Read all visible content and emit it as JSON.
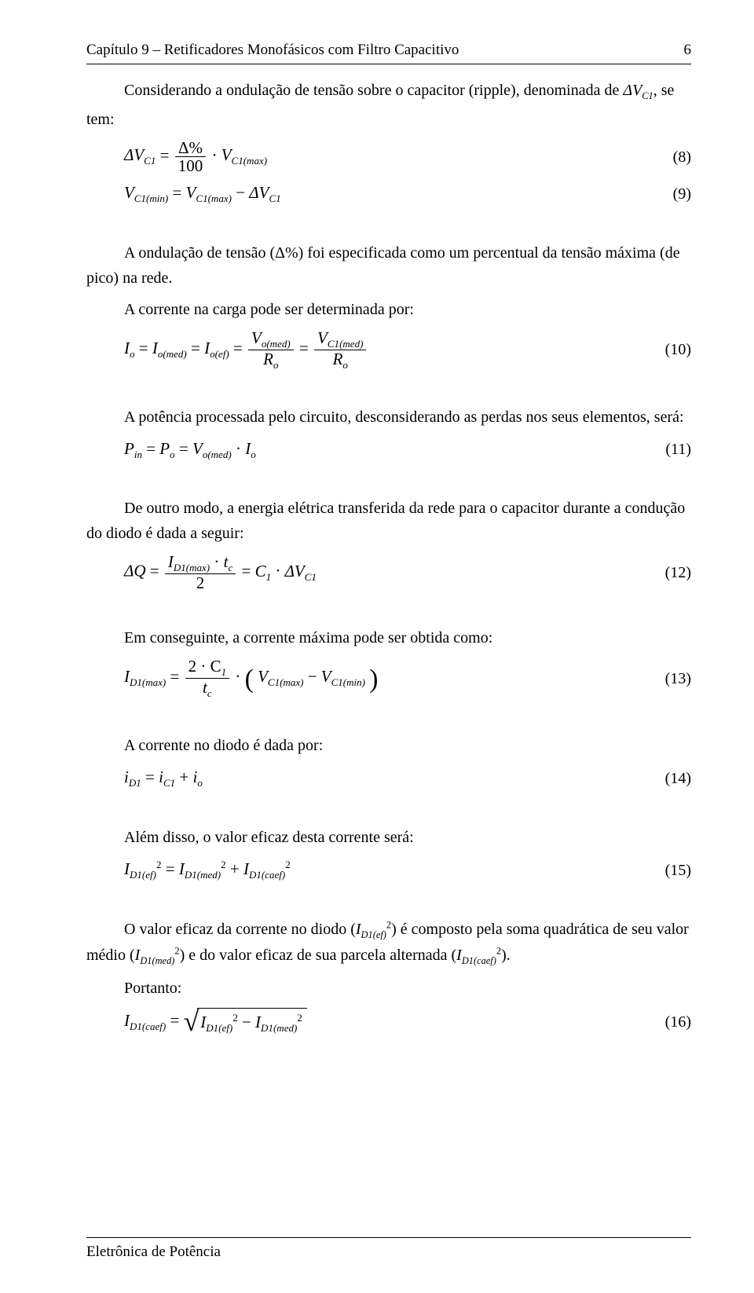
{
  "header": {
    "chapter": "Capítulo 9 – Retificadores Monofásicos com Filtro Capacitivo",
    "page_number": "6"
  },
  "footer": {
    "text": "Eletrônica de Potência"
  },
  "body": {
    "p_intro_left": "tem:",
    "p_intro_right": "Considerando a ondulação de tensão sobre o capacitor (ripple), denominada de ",
    "p_intro_sym": "ΔV",
    "p_intro_sub": "C1",
    "p_intro_tail": ", se",
    "p2a": "A ondulação de tensão (Δ%) foi especificada como um percentual da tensão máxima (de",
    "p2b": "pico) na rede.",
    "p3": "A corrente na carga pode ser determinada por:",
    "p4": "A potência processada pelo circuito, desconsiderando as perdas nos seus elementos, será:",
    "p5a": "De outro modo, a energia elétrica transferida da rede para o capacitor durante a condução",
    "p5b": "do diodo é dada a seguir:",
    "p6": "Em conseguinte, a corrente máxima pode ser obtida como:",
    "p7": "A corrente no diodo é dada por:",
    "p8": "Além disso, o valor eficaz desta corrente será:",
    "p9a": "O valor eficaz da corrente no diodo (",
    "p9a_sym": "I",
    "p9a_sub": "D1(ef)",
    "p9a_sup": "2",
    "p9a_mid": ") é composto pela soma quadrática de seu valor",
    "p9b_lead": "médio (",
    "p9b_sym1": "I",
    "p9b_sub1": "D1(med)",
    "p9b_sup1": "2",
    "p9b_mid": ") e do valor eficaz de sua parcela alternada (",
    "p9b_sym2": "I",
    "p9b_sub2": "D1(caef)",
    "p9b_sup2": "2",
    "p9b_tail": ").",
    "p10": "Portanto:"
  },
  "equations": {
    "eq8": {
      "lhs": "ΔV",
      "lhs_sub": "C1",
      "frac_num": "Δ%",
      "frac_den": "100",
      "rhs": "V",
      "rhs_sub": "C1(max)",
      "num": "(8)"
    },
    "eq9": {
      "t1": "V",
      "s1": "C1(min)",
      "t2": "V",
      "s2": "C1(max)",
      "t3": "ΔV",
      "s3": "C1",
      "num": "(9)"
    },
    "eq10": {
      "t1": "I",
      "s1": "o",
      "t2": "I",
      "s2": "o(med)",
      "t3": "I",
      "s3": "o(ef)",
      "f1n": "V",
      "f1n_sub": "o(med)",
      "f1d": "R",
      "f1d_sub": "o",
      "f2n": "V",
      "f2n_sub": "C1(med)",
      "f2d": "R",
      "f2d_sub": "o",
      "num": "(10)"
    },
    "eq11": {
      "t1": "P",
      "s1": "in",
      "t2": "P",
      "s2": "o",
      "t3": "V",
      "s3": "o(med)",
      "t4": "I",
      "s4": "o",
      "num": "(11)"
    },
    "eq12": {
      "lhs": "ΔQ",
      "num_a": "I",
      "num_a_sub": "D1(max)",
      "num_b": "t",
      "num_b_sub": "c",
      "den": "2",
      "r1": "C",
      "r1_sub": "1",
      "r2": "ΔV",
      "r2_sub": "C1",
      "num": "(12)"
    },
    "eq13": {
      "lhs": "I",
      "lhs_sub": "D1(max)",
      "fn1": "2 · C",
      "fn1_sub": "1",
      "fd": "t",
      "fd_sub": "c",
      "p1": "V",
      "p1_sub": "C1(max)",
      "p2": "V",
      "p2_sub": "C1(min)",
      "num": "(13)"
    },
    "eq14": {
      "t1": "i",
      "s1": "D1",
      "t2": "i",
      "s2": "C1",
      "t3": "i",
      "s3": "o",
      "num": "(14)"
    },
    "eq15": {
      "t1": "I",
      "s1": "D1(ef)",
      "t2": "I",
      "s2": "D1(med)",
      "t3": "I",
      "s3": "D1(caef)",
      "sup": "2",
      "num": "(15)"
    },
    "eq16": {
      "lhs": "I",
      "lhs_sub": "D1(caef)",
      "r1": "I",
      "r1_sub": "D1(ef)",
      "r2": "I",
      "r2_sub": "D1(med)",
      "sup": "2",
      "num": "(16)"
    }
  }
}
